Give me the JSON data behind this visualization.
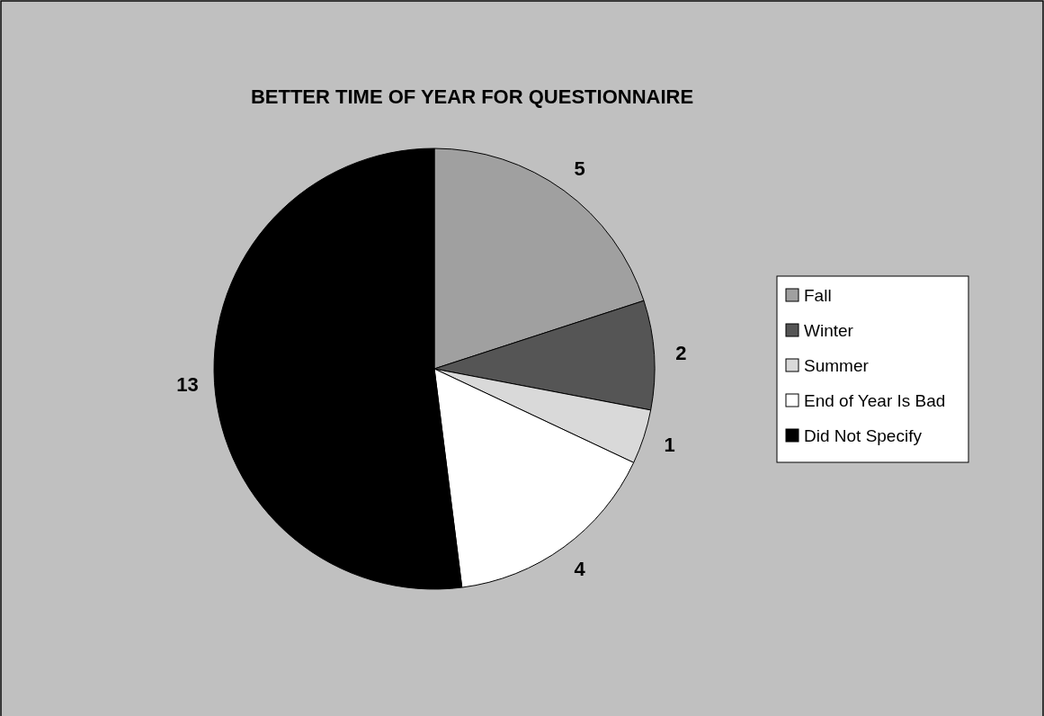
{
  "chart_data": {
    "type": "pie",
    "title": "BETTER TIME OF YEAR FOR QUESTIONNAIRE",
    "categories": [
      "Fall",
      "Winter",
      "Summer",
      "End of Year Is Bad",
      "Did Not Specify"
    ],
    "values": [
      5,
      2,
      1,
      4,
      13
    ],
    "colors": [
      "#a0a0a0",
      "#555555",
      "#d9d9d9",
      "#ffffff",
      "#000000"
    ],
    "data_labels": true,
    "legend": "right"
  }
}
